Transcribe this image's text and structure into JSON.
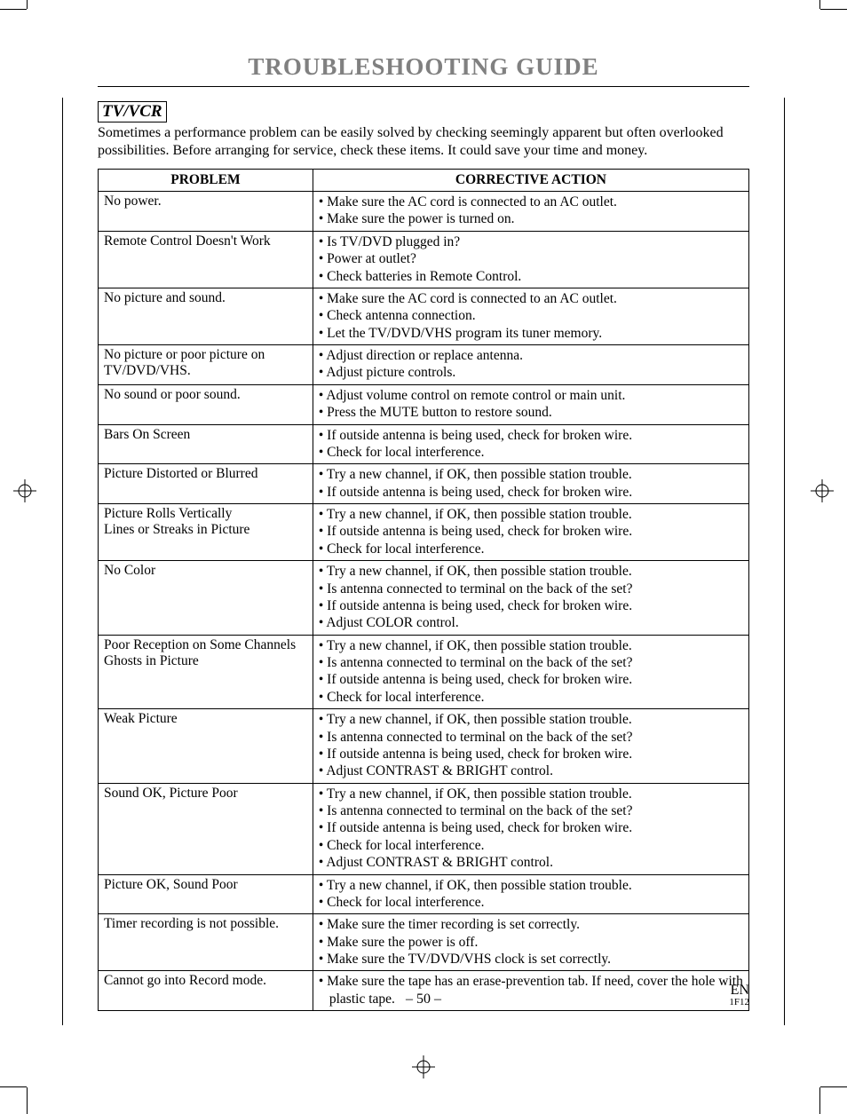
{
  "title": "TROUBLESHOOTING GUIDE",
  "section": "TV/VCR",
  "intro": "Sometimes a performance problem can be easily solved by checking seemingly apparent but often overlooked possibilities. Before arranging for service, check these items. It could save your time and money.",
  "columns": {
    "problem": "PROBLEM",
    "action": "CORRECTIVE ACTION"
  },
  "rows": [
    {
      "problem": "No power.",
      "actions": [
        "• Make sure the AC cord is connected to an AC outlet.",
        "• Make sure the power is turned on."
      ]
    },
    {
      "problem": "Remote Control Doesn't Work",
      "actions": [
        "• Is TV/DVD plugged in?",
        "• Power at outlet?",
        "• Check batteries in Remote Control."
      ]
    },
    {
      "problem": "No picture and sound.",
      "actions": [
        "• Make sure the AC cord is connected to an AC outlet.",
        "• Check antenna connection.",
        "• Let the TV/DVD/VHS program its tuner memory."
      ]
    },
    {
      "problem": "No picture or poor picture on TV/DVD/VHS.",
      "actions": [
        "• Adjust direction or replace antenna.",
        "• Adjust picture controls."
      ]
    },
    {
      "problem": "No sound or poor sound.",
      "actions": [
        "• Adjust volume control on remote control or main unit.",
        "• Press the MUTE button to restore sound."
      ]
    },
    {
      "problem": "Bars On Screen",
      "actions": [
        "• If outside antenna is being used, check for broken wire.",
        "• Check for local interference."
      ]
    },
    {
      "problem": "Picture Distorted or Blurred",
      "actions": [
        "• Try a new channel, if OK, then possible station trouble.",
        "• If outside antenna is being used, check for broken wire."
      ]
    },
    {
      "problem": "Picture Rolls Vertically\nLines or Streaks in Picture",
      "actions": [
        "• Try a new channel, if OK, then possible station trouble.",
        "• If outside antenna is being used, check for broken wire.",
        "• Check for local interference."
      ]
    },
    {
      "problem": "No Color",
      "actions": [
        "• Try a new channel, if OK, then possible station trouble.",
        "• Is antenna connected to terminal on the back of the set?",
        "• If outside antenna is being used, check for broken wire.",
        "• Adjust COLOR control."
      ]
    },
    {
      "problem": "Poor Reception on Some Channels\nGhosts in Picture",
      "actions": [
        "• Try a new channel, if OK, then possible station trouble.",
        "• Is antenna connected to terminal on the back of the set?",
        "• If outside antenna is being used, check for broken wire.",
        "• Check for local interference."
      ]
    },
    {
      "problem": "Weak Picture",
      "actions": [
        "• Try a new channel, if OK, then possible station trouble.",
        "• Is antenna connected to terminal on the back of the set?",
        "• If outside antenna is being used, check for broken wire.",
        "• Adjust CONTRAST & BRIGHT control."
      ]
    },
    {
      "problem": "Sound OK, Picture Poor",
      "actions": [
        "• Try a new channel, if OK, then possible station trouble.",
        "• Is antenna connected to terminal on the back of the set?",
        "• If outside antenna is being used, check for broken wire.",
        "• Check for local interference.",
        "• Adjust CONTRAST & BRIGHT control."
      ]
    },
    {
      "problem": "Picture OK, Sound Poor",
      "actions": [
        "• Try a new channel, if OK, then possible station trouble.",
        "• Check for local interference."
      ]
    },
    {
      "problem": "Timer recording is not possible.",
      "actions": [
        "• Make sure the timer recording is set correctly.",
        "• Make sure the power is off.",
        "• Make sure the TV/DVD/VHS clock is set correctly."
      ]
    },
    {
      "problem": "Cannot go into Record mode.",
      "actions": [
        "• Make sure the tape has an erase-prevention tab. If need, cover the hole with plastic tape."
      ]
    }
  ],
  "footer": {
    "page": "– 50 –",
    "lang": "EN",
    "code": "1F12"
  }
}
